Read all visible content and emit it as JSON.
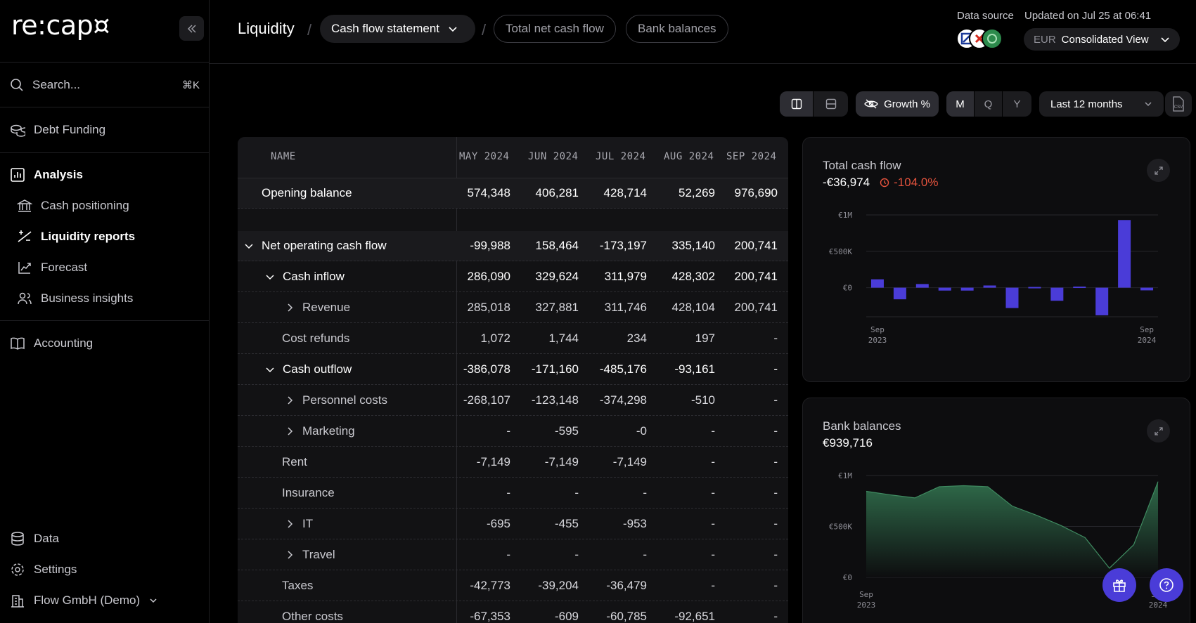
{
  "app": {
    "logo": "re:cap¤"
  },
  "sidebar": {
    "search_label": "Search...",
    "search_shortcut": "⌘K",
    "debt_funding": "Debt Funding",
    "analysis": "Analysis",
    "cash_positioning": "Cash positioning",
    "liquidity_reports": "Liquidity reports",
    "forecast": "Forecast",
    "business_insights": "Business insights",
    "accounting": "Accounting",
    "data": "Data",
    "settings": "Settings",
    "company": "Flow GmbH (Demo)"
  },
  "header": {
    "breadcrumb_root": "Liquidity",
    "view_select": "Cash flow statement",
    "tab_total": "Total net cash flow",
    "tab_bank": "Bank balances",
    "data_source_label": "Data source",
    "updated": "Updated on Jul 25 at 06:41",
    "currency": "EUR",
    "view_mode": "Consolidated View"
  },
  "toolbar": {
    "growth": "Growth %",
    "period_m": "M",
    "period_q": "Q",
    "period_y": "Y",
    "range": "Last 12 months",
    "csv": "CSV"
  },
  "table": {
    "columns": [
      "NAME",
      "MAY 2024",
      "JUN 2024",
      "JUL 2024",
      "AUG 2024",
      "SEP 2024"
    ],
    "rows": [
      {
        "name": "Opening balance",
        "values": [
          "574,348",
          "406,281",
          "428,714",
          "52,269",
          "976,690"
        ]
      },
      {
        "name": "Net operating cash flow",
        "values": [
          "-99,988",
          "158,464",
          "-173,197",
          "335,140",
          "200,741"
        ]
      },
      {
        "name": "Cash inflow",
        "values": [
          "286,090",
          "329,624",
          "311,979",
          "428,302",
          "200,741"
        ]
      },
      {
        "name": "Revenue",
        "values": [
          "285,018",
          "327,881",
          "311,746",
          "428,104",
          "200,741"
        ]
      },
      {
        "name": "Cost refunds",
        "values": [
          "1,072",
          "1,744",
          "234",
          "197",
          "-"
        ]
      },
      {
        "name": "Cash outflow",
        "values": [
          "-386,078",
          "-171,160",
          "-485,176",
          "-93,161",
          "-"
        ]
      },
      {
        "name": "Personnel costs",
        "values": [
          "-268,107",
          "-123,148",
          "-374,298",
          "-510",
          "-"
        ]
      },
      {
        "name": "Marketing",
        "values": [
          "-",
          "-595",
          "-0",
          "-",
          "-"
        ]
      },
      {
        "name": "Rent",
        "values": [
          "-7,149",
          "-7,149",
          "-7,149",
          "-",
          "-"
        ]
      },
      {
        "name": "Insurance",
        "values": [
          "-",
          "-",
          "-",
          "-",
          "-"
        ]
      },
      {
        "name": "IT",
        "values": [
          "-695",
          "-455",
          "-953",
          "-",
          "-"
        ]
      },
      {
        "name": "Travel",
        "values": [
          "-",
          "-",
          "-",
          "-",
          "-"
        ]
      },
      {
        "name": "Taxes",
        "values": [
          "-42,773",
          "-39,204",
          "-36,479",
          "-",
          "-"
        ]
      },
      {
        "name": "Other costs",
        "values": [
          "-67,353",
          "-609",
          "-60,785",
          "-92,651",
          "-"
        ]
      }
    ]
  },
  "cards": {
    "cashflow": {
      "title": "Total cash flow",
      "value": "-€36,974",
      "growth": "-104.0%"
    },
    "bank": {
      "title": "Bank balances",
      "value": "€939,716"
    }
  },
  "chart_data": [
    {
      "type": "bar",
      "title": "Total cash flow",
      "x_start_label": [
        "Sep",
        "2023"
      ],
      "x_end_label": [
        "Sep",
        "2024"
      ],
      "y_ticks": [
        "€1M",
        "€500K",
        "€0"
      ],
      "ylim": [
        -400000,
        1000000
      ],
      "values": [
        115000,
        -160000,
        50000,
        -40000,
        -40000,
        30000,
        -280000,
        10000,
        -180000,
        15000,
        -380000,
        930000,
        -37000
      ],
      "color": "#4a3cd8"
    },
    {
      "type": "area",
      "title": "Bank balances",
      "x_start_label": [
        "Sep",
        "2023"
      ],
      "x_end_label": [
        "Sep",
        "2024"
      ],
      "y_ticks": [
        "€1M",
        "€500K",
        "€0"
      ],
      "ylim": [
        0,
        1000000
      ],
      "values": [
        845000,
        810000,
        780000,
        890000,
        900000,
        890000,
        700000,
        610000,
        510000,
        390000,
        90000,
        320000,
        940000
      ],
      "color": "#2f6b4a"
    }
  ]
}
